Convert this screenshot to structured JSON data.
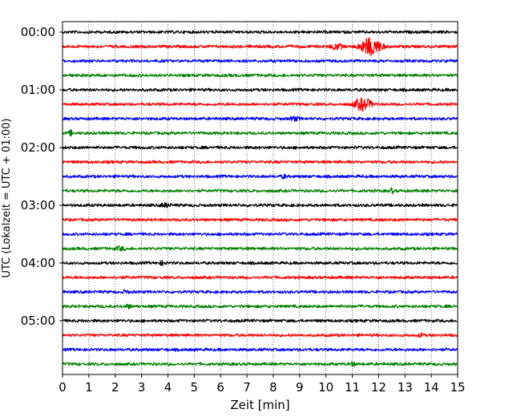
{
  "chart_data": {
    "type": "line",
    "title": "",
    "xlabel": "Zeit  [min]",
    "ylabel": "UTC (Lokalzeit = UTC + 01:00)",
    "xlim": [
      0,
      15
    ],
    "x_ticks": [
      "0",
      "1",
      "2",
      "3",
      "4",
      "5",
      "6",
      "7",
      "8",
      "9",
      "10",
      "11",
      "12",
      "13",
      "14",
      "15"
    ],
    "y_ticks": [
      "00:00",
      "01:00",
      "02:00",
      "03:00",
      "04:00",
      "05:00"
    ],
    "x_grid": true,
    "y_grid": false,
    "trace_interval_minutes": 15,
    "color_cycle": [
      "#000000",
      "#ff0000",
      "#0000ff",
      "#008000"
    ],
    "series": [
      {
        "start": "00:00",
        "color": "#000000",
        "events": []
      },
      {
        "start": "00:15",
        "color": "#ff0000",
        "events": [
          {
            "center": 11.7,
            "width": 1.4,
            "amp": 10
          },
          {
            "center": 10.4,
            "width": 0.8,
            "amp": 3
          }
        ]
      },
      {
        "start": "00:30",
        "color": "#0000ff",
        "events": []
      },
      {
        "start": "00:45",
        "color": "#008000",
        "events": []
      },
      {
        "start": "01:00",
        "color": "#000000",
        "events": []
      },
      {
        "start": "01:15",
        "color": "#ff0000",
        "events": [
          {
            "center": 11.4,
            "width": 1.1,
            "amp": 7
          }
        ]
      },
      {
        "start": "01:30",
        "color": "#0000ff",
        "events": [
          {
            "center": 8.8,
            "width": 0.6,
            "amp": 2
          }
        ]
      },
      {
        "start": "01:45",
        "color": "#008000",
        "events": [
          {
            "center": 0.3,
            "width": 0.2,
            "amp": 3
          }
        ]
      },
      {
        "start": "02:00",
        "color": "#000000",
        "events": []
      },
      {
        "start": "02:15",
        "color": "#ff0000",
        "events": []
      },
      {
        "start": "02:30",
        "color": "#0000ff",
        "events": [
          {
            "center": 8.4,
            "width": 0.3,
            "amp": 2
          }
        ]
      },
      {
        "start": "02:45",
        "color": "#008000",
        "events": [
          {
            "center": 12.5,
            "width": 0.2,
            "amp": 3
          }
        ]
      },
      {
        "start": "03:00",
        "color": "#000000",
        "events": [
          {
            "center": 3.9,
            "width": 0.6,
            "amp": 2
          }
        ]
      },
      {
        "start": "03:15",
        "color": "#ff0000",
        "events": []
      },
      {
        "start": "03:30",
        "color": "#0000ff",
        "events": []
      },
      {
        "start": "03:45",
        "color": "#008000",
        "events": [
          {
            "center": 2.2,
            "width": 0.6,
            "amp": 2
          }
        ]
      },
      {
        "start": "04:00",
        "color": "#000000",
        "events": [
          {
            "center": 3.8,
            "width": 0.4,
            "amp": 2
          }
        ]
      },
      {
        "start": "04:15",
        "color": "#ff0000",
        "events": []
      },
      {
        "start": "04:30",
        "color": "#0000ff",
        "events": [
          {
            "center": 2.4,
            "width": 0.3,
            "amp": 2
          }
        ]
      },
      {
        "start": "04:45",
        "color": "#008000",
        "events": [
          {
            "center": 2.5,
            "width": 0.4,
            "amp": 2
          }
        ]
      },
      {
        "start": "05:00",
        "color": "#000000",
        "events": []
      },
      {
        "start": "05:15",
        "color": "#ff0000",
        "events": [
          {
            "center": 13.6,
            "width": 0.3,
            "amp": 2
          }
        ]
      },
      {
        "start": "05:30",
        "color": "#0000ff",
        "events": []
      },
      {
        "start": "05:45",
        "color": "#008000",
        "events": [
          {
            "center": 11.0,
            "width": 0.4,
            "amp": 2
          }
        ]
      }
    ]
  }
}
